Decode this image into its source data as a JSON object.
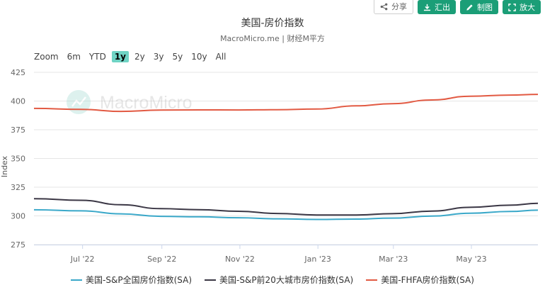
{
  "toolbar": {
    "share_label": "分享",
    "export_label": "汇出",
    "image_label": "制图",
    "fullscreen_label": "放大",
    "accent_color": "#1b9e77"
  },
  "zoom": {
    "label": "Zoom",
    "options": [
      "6m",
      "YTD",
      "1y",
      "2y",
      "3y",
      "5y",
      "10y",
      "All"
    ],
    "selected": "1y"
  },
  "watermark": {
    "text": "MacroMicro"
  },
  "chart_data": {
    "type": "line",
    "title": "美国-房价指数",
    "subtitle": "MacroMicro.me | 财经M平方",
    "ylabel": "Index",
    "ylim": [
      275,
      425
    ],
    "yticks": [
      275,
      300,
      325,
      350,
      375,
      400,
      425
    ],
    "x_range": [
      "2022-05-24",
      "2023-06-22"
    ],
    "xticks": [
      {
        "date": "2022-07-01",
        "label": "Jul '22"
      },
      {
        "date": "2022-09-01",
        "label": "Sep '22"
      },
      {
        "date": "2022-11-01",
        "label": "Nov '22"
      },
      {
        "date": "2023-01-01",
        "label": "Jan '23"
      },
      {
        "date": "2023-03-01",
        "label": "Mar '23"
      },
      {
        "date": "2023-05-01",
        "label": "May '23"
      }
    ],
    "grid": true,
    "legend_position": "bottom",
    "series": [
      {
        "name": "美国-S&P全国房价指数(SA)",
        "color": "#3aa8c9",
        "points": [
          {
            "x": "2022-05-24",
            "y": 305.3
          },
          {
            "x": "2022-06-30",
            "y": 304.4
          },
          {
            "x": "2022-07-31",
            "y": 301.8
          },
          {
            "x": "2022-08-31",
            "y": 299.6
          },
          {
            "x": "2022-09-30",
            "y": 299.2
          },
          {
            "x": "2022-10-31",
            "y": 298.4
          },
          {
            "x": "2022-11-30",
            "y": 297.5
          },
          {
            "x": "2022-12-31",
            "y": 296.9
          },
          {
            "x": "2023-01-31",
            "y": 297.2
          },
          {
            "x": "2023-02-28",
            "y": 298.1
          },
          {
            "x": "2023-03-31",
            "y": 299.8
          },
          {
            "x": "2023-04-30",
            "y": 302.3
          },
          {
            "x": "2023-05-31",
            "y": 303.8
          },
          {
            "x": "2023-06-22",
            "y": 305.0
          }
        ]
      },
      {
        "name": "美国-S&P前20大城市房价指数(SA)",
        "color": "#3b3745",
        "points": [
          {
            "x": "2022-05-24",
            "y": 315.0
          },
          {
            "x": "2022-06-30",
            "y": 313.6
          },
          {
            "x": "2022-07-31",
            "y": 309.7
          },
          {
            "x": "2022-08-31",
            "y": 306.3
          },
          {
            "x": "2022-09-30",
            "y": 305.4
          },
          {
            "x": "2022-10-31",
            "y": 304.0
          },
          {
            "x": "2022-11-30",
            "y": 302.1
          },
          {
            "x": "2022-12-31",
            "y": 300.8
          },
          {
            "x": "2023-01-31",
            "y": 300.8
          },
          {
            "x": "2023-02-28",
            "y": 301.9
          },
          {
            "x": "2023-03-31",
            "y": 304.2
          },
          {
            "x": "2023-04-30",
            "y": 307.5
          },
          {
            "x": "2023-05-31",
            "y": 309.3
          },
          {
            "x": "2023-06-22",
            "y": 310.9
          }
        ]
      },
      {
        "name": "美国-FHFA房价指数(SA)",
        "color": "#e25a43",
        "points": [
          {
            "x": "2022-05-24",
            "y": 393.6
          },
          {
            "x": "2022-06-30",
            "y": 392.7
          },
          {
            "x": "2022-07-31",
            "y": 391.0
          },
          {
            "x": "2022-08-31",
            "y": 392.1
          },
          {
            "x": "2022-09-30",
            "y": 392.3
          },
          {
            "x": "2022-10-31",
            "y": 392.2
          },
          {
            "x": "2022-11-30",
            "y": 392.5
          },
          {
            "x": "2022-12-31",
            "y": 393.0
          },
          {
            "x": "2023-01-31",
            "y": 395.8
          },
          {
            "x": "2023-02-28",
            "y": 397.7
          },
          {
            "x": "2023-03-31",
            "y": 400.9
          },
          {
            "x": "2023-04-30",
            "y": 404.2
          },
          {
            "x": "2023-05-31",
            "y": 405.2
          },
          {
            "x": "2023-06-22",
            "y": 405.8
          }
        ]
      }
    ]
  }
}
